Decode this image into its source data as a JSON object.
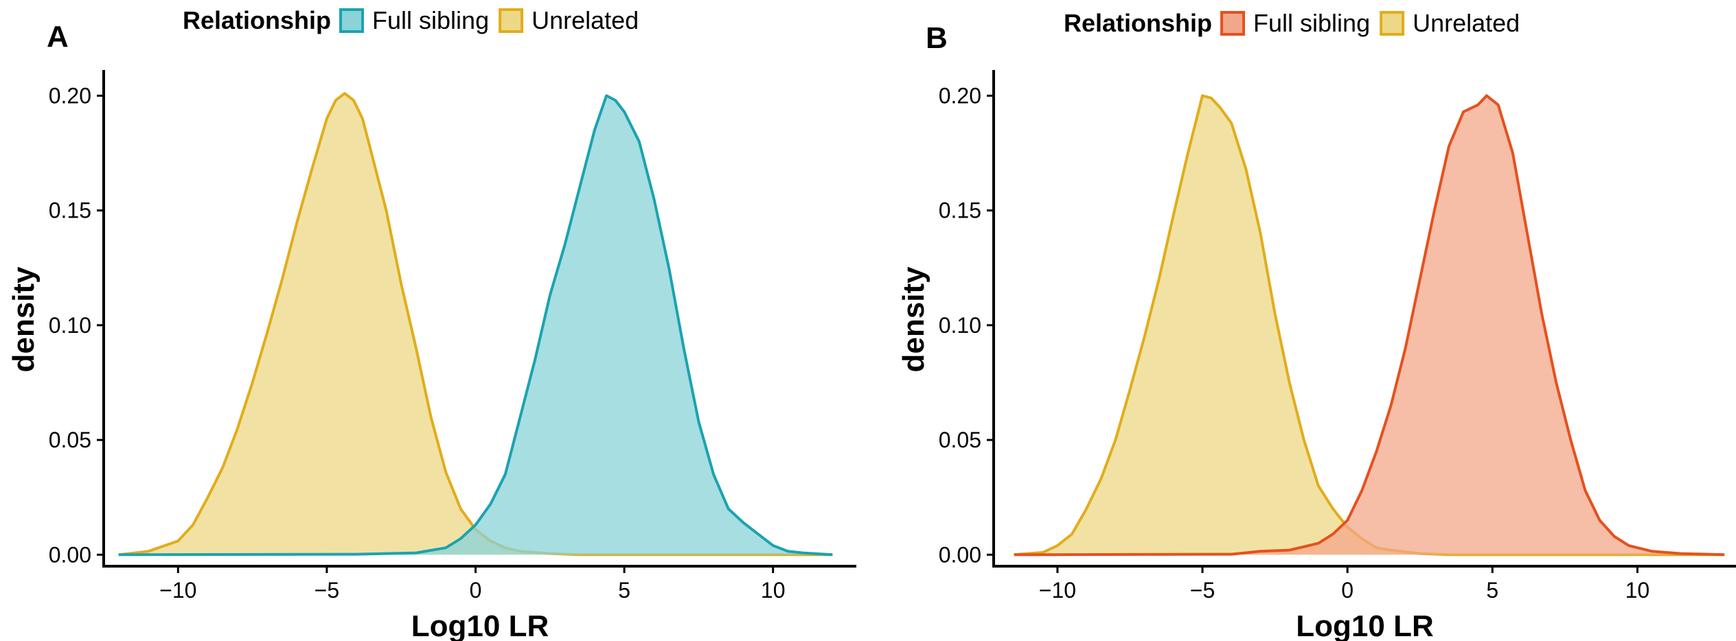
{
  "chart_data": [
    {
      "panel": "A",
      "type": "area",
      "xlabel": "Log10 LR",
      "ylabel": "density",
      "xlim": [
        -12.5,
        12.8
      ],
      "ylim": [
        -0.005,
        0.21
      ],
      "x_ticks": [
        -10,
        -5,
        0,
        5,
        10
      ],
      "x_tick_labels": [
        "−10",
        "−5",
        "0",
        "5",
        "10"
      ],
      "y_ticks": [
        0.0,
        0.05,
        0.1,
        0.15,
        0.2
      ],
      "y_tick_labels": [
        "0.00",
        "0.05",
        "0.10",
        "0.15",
        "0.20"
      ],
      "grid": false,
      "legend": {
        "title": "Relationship",
        "position": "top",
        "entries": [
          {
            "label": "Full sibling",
            "fill": "#8AD3D8",
            "stroke": "#1BA3B0"
          },
          {
            "label": "Unrelated",
            "fill": "#ECD886",
            "stroke": "#E1AD1B"
          }
        ]
      },
      "series": [
        {
          "name": "Unrelated",
          "fill": "#ECD886",
          "stroke": "#E1AD1B",
          "points": [
            [
              -12,
              0.0
            ],
            [
              -11,
              0.0015
            ],
            [
              -10,
              0.006
            ],
            [
              -9.5,
              0.013
            ],
            [
              -9,
              0.025
            ],
            [
              -8.5,
              0.038
            ],
            [
              -8,
              0.055
            ],
            [
              -7.5,
              0.075
            ],
            [
              -7,
              0.097
            ],
            [
              -6.5,
              0.12
            ],
            [
              -6,
              0.145
            ],
            [
              -5.5,
              0.168
            ],
            [
              -5,
              0.19
            ],
            [
              -4.7,
              0.198
            ],
            [
              -4.4,
              0.201
            ],
            [
              -4.1,
              0.198
            ],
            [
              -3.8,
              0.19
            ],
            [
              -3.5,
              0.175
            ],
            [
              -3,
              0.15
            ],
            [
              -2.5,
              0.118
            ],
            [
              -2,
              0.09
            ],
            [
              -1.5,
              0.06
            ],
            [
              -1,
              0.036
            ],
            [
              -0.5,
              0.02
            ],
            [
              0,
              0.011
            ],
            [
              0.5,
              0.006
            ],
            [
              1,
              0.003
            ],
            [
              1.5,
              0.0015
            ],
            [
              2.5,
              0.0005
            ],
            [
              3.5,
              0.0
            ],
            [
              12,
              0.0
            ]
          ]
        },
        {
          "name": "Full sibling",
          "fill": "#8AD3D8",
          "stroke": "#1BA3B0",
          "points": [
            [
              -12,
              0.0
            ],
            [
              -4,
              0.0002
            ],
            [
              -2,
              0.0008
            ],
            [
              -1,
              0.003
            ],
            [
              -0.5,
              0.007
            ],
            [
              0,
              0.013
            ],
            [
              0.5,
              0.022
            ],
            [
              1,
              0.035
            ],
            [
              1.5,
              0.06
            ],
            [
              2,
              0.085
            ],
            [
              2.5,
              0.113
            ],
            [
              3,
              0.135
            ],
            [
              3.5,
              0.16
            ],
            [
              4,
              0.185
            ],
            [
              4.4,
              0.2
            ],
            [
              4.7,
              0.198
            ],
            [
              5,
              0.193
            ],
            [
              5.5,
              0.18
            ],
            [
              6,
              0.155
            ],
            [
              6.5,
              0.125
            ],
            [
              7,
              0.09
            ],
            [
              7.5,
              0.058
            ],
            [
              8,
              0.035
            ],
            [
              8.5,
              0.02
            ],
            [
              9,
              0.014
            ],
            [
              9.5,
              0.009
            ],
            [
              10,
              0.004
            ],
            [
              10.5,
              0.0015
            ],
            [
              11,
              0.0008
            ],
            [
              12,
              0.0
            ]
          ]
        }
      ]
    },
    {
      "panel": "B",
      "type": "area",
      "xlabel": "Log10 LR",
      "ylabel": "density",
      "xlim": [
        -12.2,
        13.4
      ],
      "ylim": [
        -0.005,
        0.21
      ],
      "x_ticks": [
        -10,
        -5,
        0,
        5,
        10
      ],
      "x_tick_labels": [
        "−10",
        "−5",
        "0",
        "5",
        "10"
      ],
      "y_ticks": [
        0.0,
        0.05,
        0.1,
        0.15,
        0.2
      ],
      "y_tick_labels": [
        "0.00",
        "0.05",
        "0.10",
        "0.15",
        "0.20"
      ],
      "grid": false,
      "legend": {
        "title": "Relationship",
        "position": "top",
        "entries": [
          {
            "label": "Full sibling",
            "fill": "#F3A78A",
            "stroke": "#E5511E"
          },
          {
            "label": "Unrelated",
            "fill": "#ECD886",
            "stroke": "#E1AD1B"
          }
        ]
      },
      "series": [
        {
          "name": "Unrelated",
          "fill": "#ECD886",
          "stroke": "#E1AD1B",
          "points": [
            [
              -11.5,
              0.0
            ],
            [
              -10.5,
              0.001
            ],
            [
              -10,
              0.004
            ],
            [
              -9.5,
              0.009
            ],
            [
              -9,
              0.02
            ],
            [
              -8.5,
              0.033
            ],
            [
              -8,
              0.05
            ],
            [
              -7.5,
              0.072
            ],
            [
              -7,
              0.095
            ],
            [
              -6.5,
              0.12
            ],
            [
              -6,
              0.148
            ],
            [
              -5.5,
              0.175
            ],
            [
              -5,
              0.2
            ],
            [
              -4.7,
              0.199
            ],
            [
              -4.4,
              0.195
            ],
            [
              -4,
              0.188
            ],
            [
              -3.5,
              0.168
            ],
            [
              -3,
              0.14
            ],
            [
              -2.5,
              0.105
            ],
            [
              -2,
              0.075
            ],
            [
              -1.5,
              0.05
            ],
            [
              -1,
              0.03
            ],
            [
              -0.5,
              0.02
            ],
            [
              0,
              0.012
            ],
            [
              0.5,
              0.007
            ],
            [
              1,
              0.003
            ],
            [
              1.5,
              0.002
            ],
            [
              2.5,
              0.0005
            ],
            [
              3.5,
              0.0
            ],
            [
              13,
              0.0
            ]
          ]
        },
        {
          "name": "Full sibling",
          "fill": "#F3A78A",
          "stroke": "#E5511E",
          "points": [
            [
              -11.5,
              0.0
            ],
            [
              -4,
              0.0002
            ],
            [
              -3,
              0.0015
            ],
            [
              -2,
              0.002
            ],
            [
              -1,
              0.005
            ],
            [
              -0.5,
              0.009
            ],
            [
              0,
              0.015
            ],
            [
              0.5,
              0.028
            ],
            [
              1,
              0.045
            ],
            [
              1.5,
              0.065
            ],
            [
              2,
              0.09
            ],
            [
              2.5,
              0.12
            ],
            [
              3,
              0.15
            ],
            [
              3.5,
              0.178
            ],
            [
              4,
              0.193
            ],
            [
              4.5,
              0.196
            ],
            [
              4.8,
              0.2
            ],
            [
              5.2,
              0.196
            ],
            [
              5.7,
              0.175
            ],
            [
              6.2,
              0.14
            ],
            [
              6.7,
              0.105
            ],
            [
              7.2,
              0.075
            ],
            [
              7.7,
              0.05
            ],
            [
              8.2,
              0.028
            ],
            [
              8.7,
              0.015
            ],
            [
              9.2,
              0.008
            ],
            [
              9.7,
              0.004
            ],
            [
              10.5,
              0.0015
            ],
            [
              11.5,
              0.0005
            ],
            [
              13,
              0.0
            ]
          ]
        }
      ]
    }
  ]
}
